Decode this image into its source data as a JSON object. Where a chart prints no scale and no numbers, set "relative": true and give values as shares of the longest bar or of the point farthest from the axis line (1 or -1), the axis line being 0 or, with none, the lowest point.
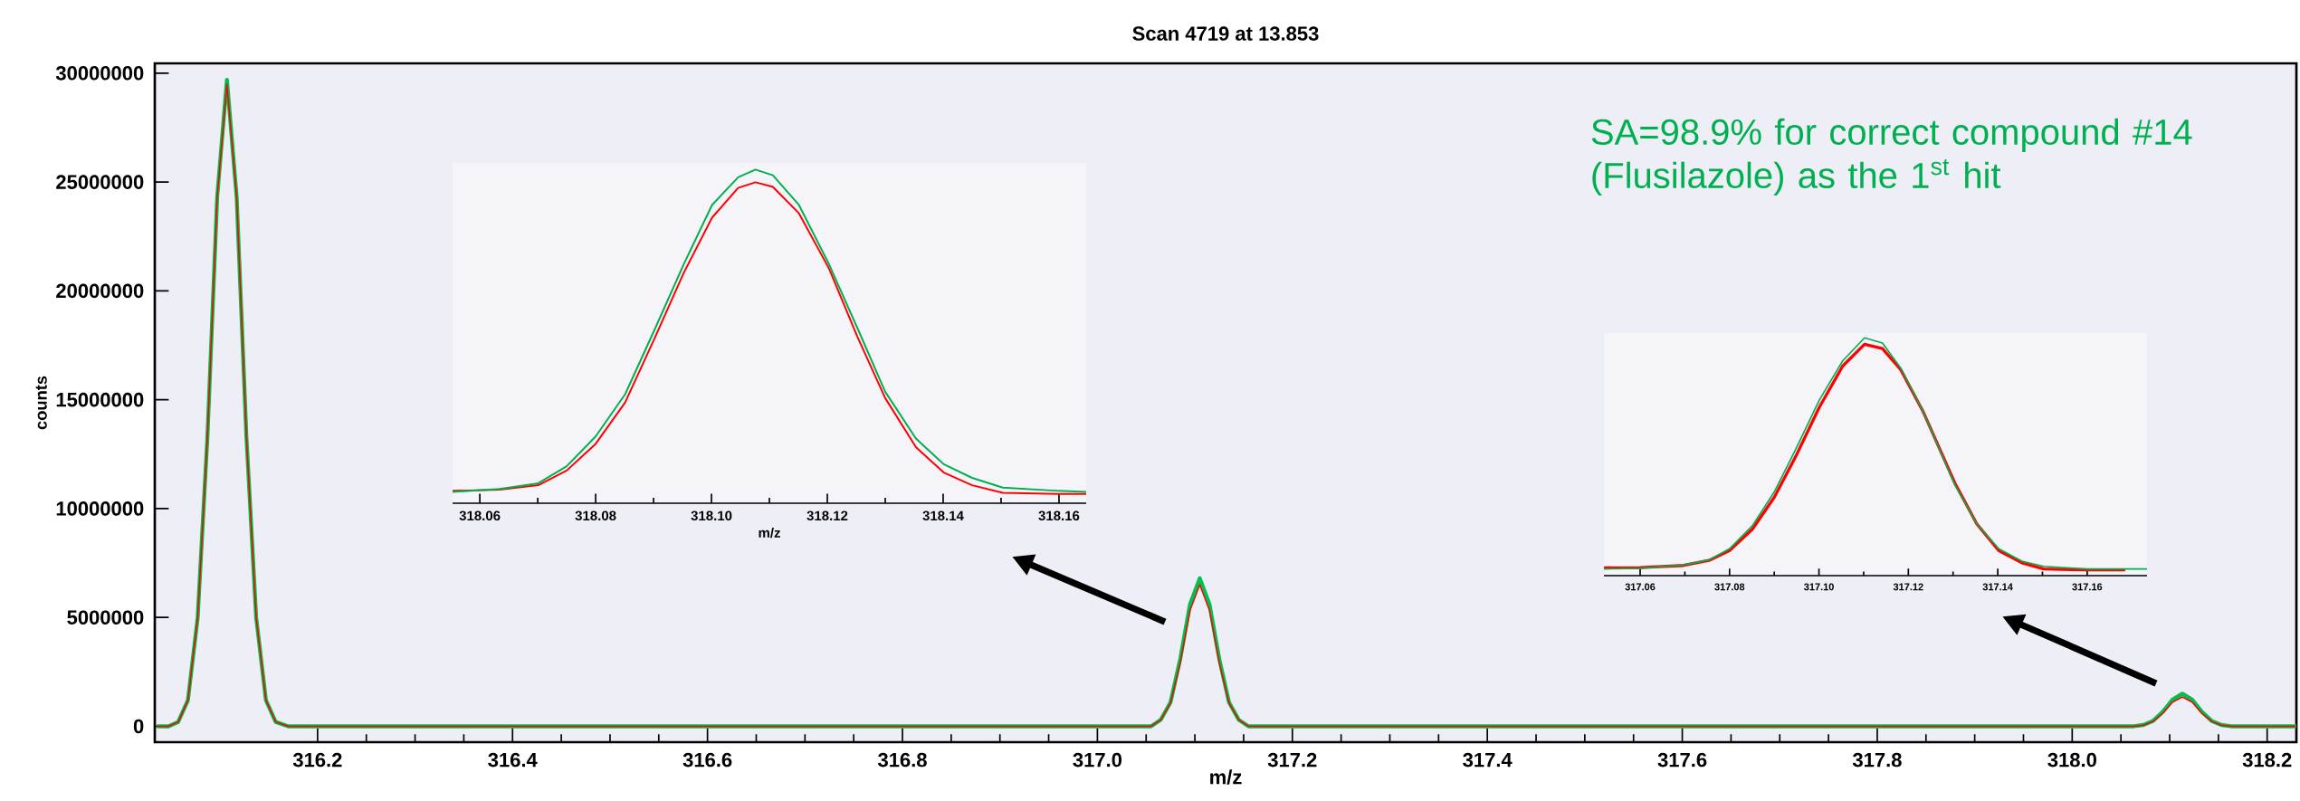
{
  "chart_data": [
    {
      "type": "line",
      "title": "Scan 4719 at 13.853",
      "xlabel": "m/z",
      "ylabel": "counts",
      "xlim": [
        316.033,
        318.23
      ],
      "ylim": [
        -730000,
        30450000
      ],
      "xticks": [
        {
          "value": 316.2,
          "label": "316.2"
        },
        {
          "value": 316.4,
          "label": "316.4"
        },
        {
          "value": 316.6,
          "label": "316.6"
        },
        {
          "value": 316.8,
          "label": "316.8"
        },
        {
          "value": 317.0,
          "label": "317.0"
        },
        {
          "value": 317.2,
          "label": "317.2"
        },
        {
          "value": 317.4,
          "label": "317.4"
        },
        {
          "value": 317.6,
          "label": "317.6"
        },
        {
          "value": 317.8,
          "label": "317.8"
        },
        {
          "value": 318.0,
          "label": "318.0"
        },
        {
          "value": 318.2,
          "label": "318.2"
        }
      ],
      "yticks": [
        0,
        5000000,
        10000000,
        15000000,
        20000000,
        25000000,
        30000000
      ],
      "annotations": [
        "SA=98.9% for correct compound #14 (Flusilazole) as the 1$^{st}$ hit"
      ],
      "series": [
        {
          "color": "#00c050",
          "x": [
            316.035,
            316.047,
            316.057,
            316.067,
            316.077,
            316.087,
            316.097,
            316.107,
            316.117,
            316.127,
            316.137,
            316.147,
            316.157,
            316.17,
            317.04,
            317.055,
            317.065,
            317.075,
            317.085,
            317.095,
            317.105,
            317.115,
            317.125,
            317.135,
            317.145,
            317.155,
            317.17,
            318.05,
            318.063,
            318.073,
            318.083,
            318.093,
            318.103,
            318.113,
            318.123,
            318.133,
            318.143,
            318.153,
            318.163,
            318.23
          ],
          "values": [
            0,
            0,
            200000,
            1200000,
            5000000,
            13300000,
            24300000,
            29700000,
            24300000,
            13300000,
            5000000,
            1200000,
            200000,
            0,
            0,
            0,
            300000,
            1100000,
            3100000,
            5600000,
            6800000,
            5600000,
            3100000,
            1100000,
            300000,
            0,
            0,
            0,
            0,
            60000,
            250000,
            670000,
            1230000,
            1500000,
            1230000,
            670000,
            250000,
            60000,
            0,
            0
          ]
        },
        {
          "color": "#ff0000",
          "x": [
            316.035,
            316.047,
            316.057,
            316.067,
            316.077,
            316.087,
            316.097,
            316.107,
            316.117,
            316.127,
            316.137,
            316.147,
            316.157,
            316.17,
            317.04,
            317.055,
            317.065,
            317.075,
            317.085,
            317.095,
            317.105,
            317.115,
            317.125,
            317.135,
            317.145,
            317.155,
            317.17,
            318.05,
            318.063,
            318.073,
            318.083,
            318.093,
            318.103,
            318.113,
            318.123,
            318.133,
            318.143,
            318.153,
            318.163,
            318.23
          ],
          "values": [
            0,
            0,
            200000,
            1200000,
            5000000,
            13300000,
            24300000,
            29500000,
            24300000,
            13300000,
            5000000,
            1200000,
            200000,
            0,
            0,
            0,
            290000,
            1070000,
            2920000,
            5320000,
            6500000,
            5320000,
            2920000,
            1070000,
            290000,
            0,
            0,
            0,
            0,
            50000,
            220000,
            600000,
            1110000,
            1350000,
            1110000,
            600000,
            220000,
            50000,
            0,
            0
          ]
        }
      ]
    },
    {
      "type": "line",
      "relative": true,
      "xlabel": "m/z",
      "xlim": [
        318.0553,
        318.1647
      ],
      "xticks": [
        318.06,
        318.08,
        {
          "value": 318.1,
          "label": "318.10"
        },
        318.12,
        318.14,
        318.16
      ],
      "series": [
        {
          "color": "#ff0000",
          "x": [
            318.0553,
            318.0634,
            318.0701,
            318.075,
            318.08,
            318.0851,
            318.0903,
            318.0952,
            318.1001,
            318.1046,
            318.1076,
            318.1106,
            318.1151,
            318.1203,
            318.1252,
            318.13,
            318.1353,
            318.1401,
            318.145,
            318.1503,
            318.16,
            318.1647
          ],
          "values": [
            0.037,
            0.041,
            0.054,
            0.098,
            0.178,
            0.302,
            0.499,
            0.69,
            0.856,
            0.945,
            0.962,
            0.948,
            0.869,
            0.703,
            0.499,
            0.315,
            0.168,
            0.092,
            0.054,
            0.031,
            0.028,
            0.028
          ]
        },
        {
          "color": "#00b050",
          "x": [
            318.0553,
            318.0634,
            318.0701,
            318.075,
            318.08,
            318.0851,
            318.0903,
            318.0952,
            318.1001,
            318.1046,
            318.1076,
            318.1106,
            318.1151,
            318.1203,
            318.1252,
            318.13,
            318.1353,
            318.1401,
            318.145,
            318.1503,
            318.16,
            318.1647
          ],
          "values": [
            0.034,
            0.043,
            0.06,
            0.111,
            0.2,
            0.327,
            0.525,
            0.716,
            0.894,
            0.977,
            1,
            0.983,
            0.894,
            0.716,
            0.525,
            0.334,
            0.194,
            0.117,
            0.076,
            0.047,
            0.037,
            0.034
          ]
        }
      ]
    },
    {
      "type": "line",
      "relative": true,
      "xlim": [
        317.0519,
        317.1734
      ],
      "xticks": [
        317.06,
        317.08,
        {
          "value": 317.1,
          "label": "317.10"
        },
        317.12,
        317.14,
        317.16
      ],
      "series": [
        {
          "color": "#ff0000",
          "x": [
            317.0519,
            317.06,
            317.0697,
            317.0754,
            317.08,
            317.0851,
            317.09,
            317.0948,
            317.1001,
            317.1053,
            317.1102,
            317.1142,
            317.1183,
            317.1232,
            317.1304,
            317.1353,
            317.1402,
            317.1454,
            317.1503,
            317.16,
            317.1685
          ],
          "values": [
            0.033,
            0.034,
            0.043,
            0.064,
            0.106,
            0.195,
            0.329,
            0.501,
            0.709,
            0.881,
            0.973,
            0.955,
            0.866,
            0.694,
            0.389,
            0.218,
            0.106,
            0.054,
            0.028,
            0.024,
            0.024
          ]
        },
        {
          "color": "#00b050",
          "x": [
            317.0519,
            317.06,
            317.0697,
            317.0754,
            317.08,
            317.0851,
            317.09,
            317.0948,
            317.1001,
            317.1053,
            317.1102,
            317.1142,
            317.1183,
            317.1232,
            317.1304,
            317.1353,
            317.1402,
            317.1454,
            317.1503,
            317.16,
            317.1734
          ],
          "values": [
            0.028,
            0.031,
            0.045,
            0.066,
            0.113,
            0.21,
            0.352,
            0.531,
            0.739,
            0.903,
            1,
            0.978,
            0.873,
            0.694,
            0.382,
            0.218,
            0.113,
            0.061,
            0.039,
            0.028,
            0.028
          ]
        }
      ]
    }
  ]
}
